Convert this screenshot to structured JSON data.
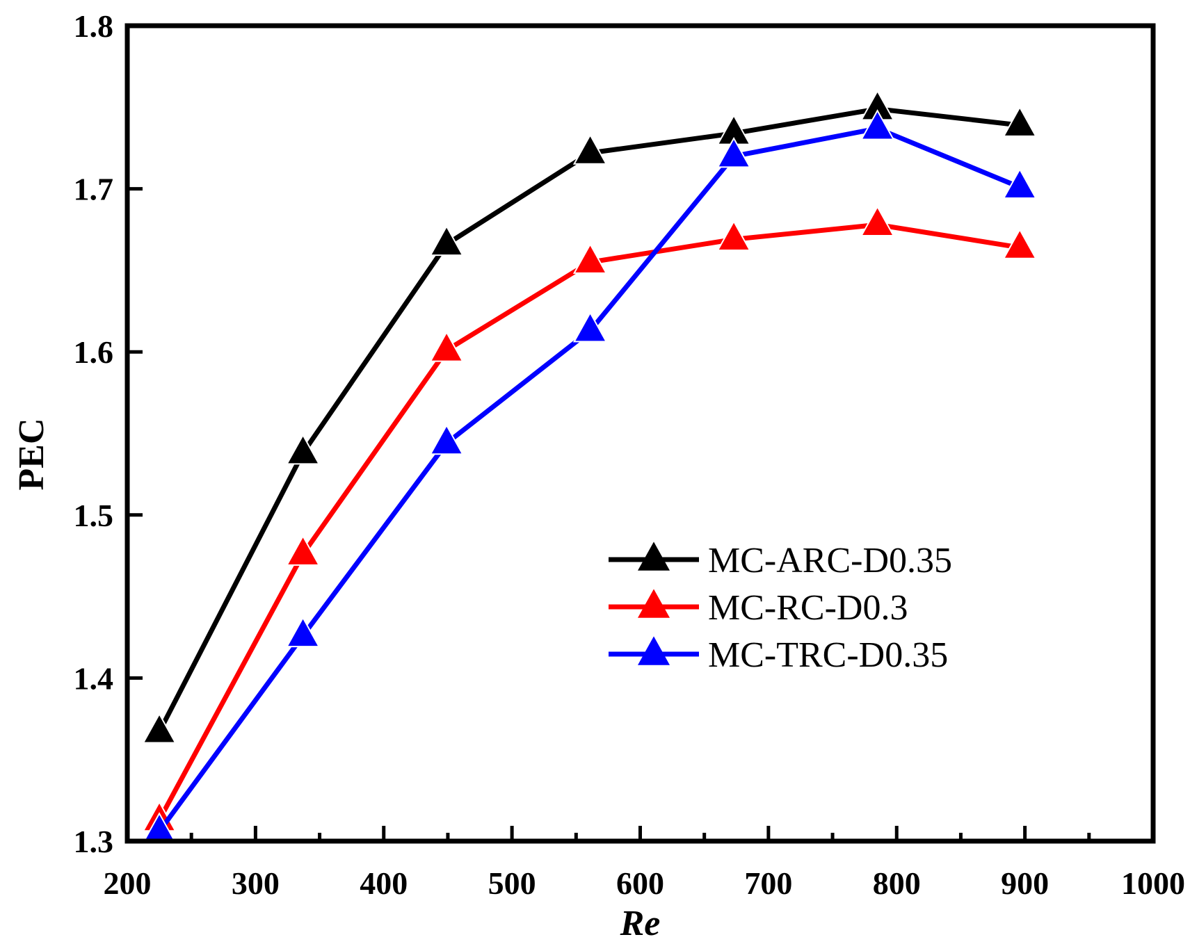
{
  "chart_data": {
    "type": "line",
    "title": "",
    "xlabel": "Re",
    "ylabel": "PEC",
    "xlim": [
      200,
      1000
    ],
    "ylim": [
      1.3,
      1.8
    ],
    "x_ticks": [
      200,
      300,
      400,
      500,
      600,
      700,
      800,
      900,
      1000
    ],
    "x_tick_labels": [
      "200",
      "300",
      "400",
      "500",
      "600",
      "700",
      "800",
      "900",
      "1000"
    ],
    "y_ticks": [
      1.3,
      1.4,
      1.5,
      1.6,
      1.7,
      1.8
    ],
    "y_tick_labels": [
      "1.3",
      "1.4",
      "1.5",
      "1.6",
      "1.7",
      "1.8"
    ],
    "grid": false,
    "legend_position": "center-right",
    "x": [
      225,
      337,
      449,
      561,
      673,
      785,
      896
    ],
    "series": [
      {
        "name": "MC-ARC-D0.35",
        "color": "#000000",
        "marker": "triangle",
        "values": [
          1.367,
          1.538,
          1.666,
          1.722,
          1.734,
          1.749,
          1.739
        ]
      },
      {
        "name": "MC-RC-D0.3",
        "color": "#ff0000",
        "marker": "triangle",
        "values": [
          1.313,
          1.476,
          1.601,
          1.655,
          1.669,
          1.678,
          1.664
        ]
      },
      {
        "name": "MC-TRC-D0.35",
        "color": "#0000ff",
        "marker": "triangle",
        "values": [
          1.306,
          1.426,
          1.544,
          1.613,
          1.72,
          1.737,
          1.701
        ]
      }
    ]
  }
}
